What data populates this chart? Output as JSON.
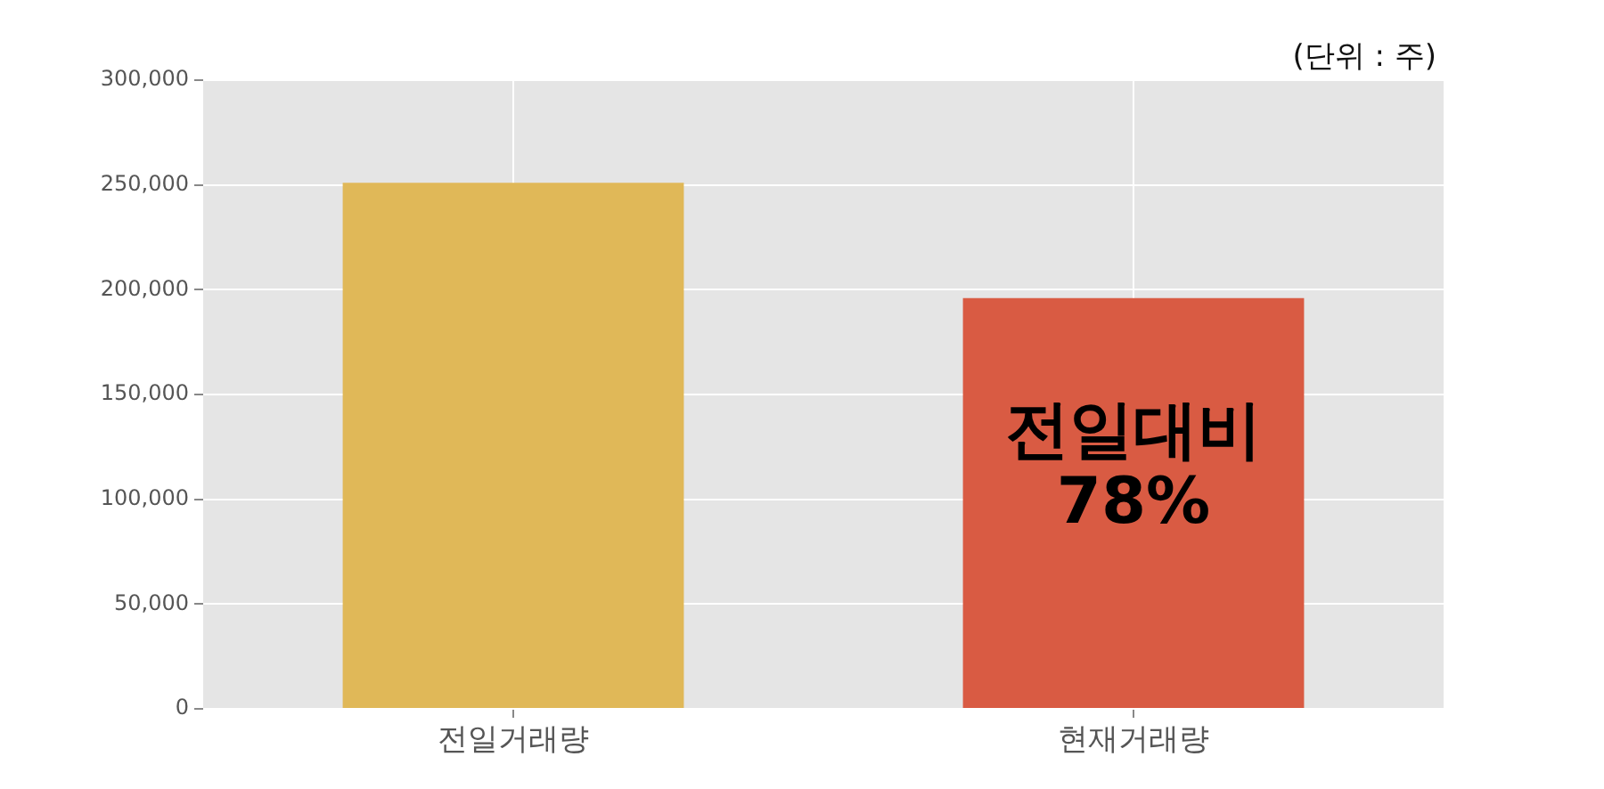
{
  "chart_data": {
    "type": "bar",
    "categories": [
      "전일거래량",
      "현재거래량"
    ],
    "values": [
      251000,
      196000
    ],
    "colors": [
      "#e0b858",
      "#d95b43"
    ],
    "ylim": [
      0,
      300000
    ],
    "yticks": [
      0,
      {
        "value": 50000,
        "label": "50,000"
      },
      {
        "value": 100000,
        "label": "100,000"
      },
      {
        "value": 150000,
        "label": "150,000"
      },
      {
        "value": 200000,
        "label": "200,000"
      },
      {
        "value": 250000,
        "label": "250,000"
      },
      {
        "value": 300000,
        "label": "300,000"
      }
    ],
    "grid": true,
    "annotations": [
      "(단위 : 주)",
      "전일대비\n78%"
    ]
  }
}
